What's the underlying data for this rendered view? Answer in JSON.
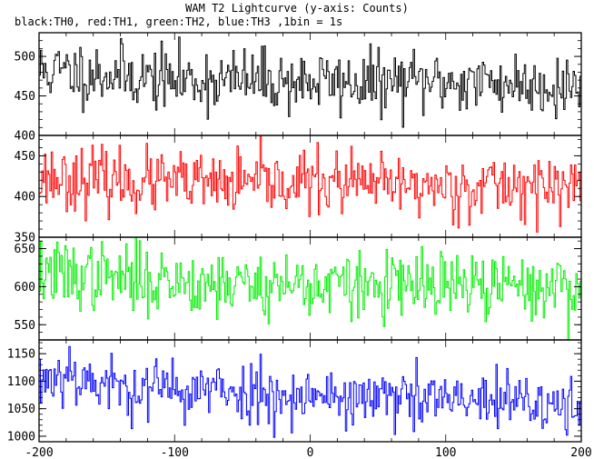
{
  "title": "WAM T2 Lightcurve (y-axis: Counts)",
  "subtitle": "black:TH0, red:TH1, green:TH2, blue:TH3 ,1bin = 1s",
  "chart_data": {
    "type": "line",
    "style": "histogram-step",
    "x_range": [
      -200,
      200
    ],
    "x_ticks": [
      -200,
      -100,
      0,
      100,
      200
    ],
    "bin_size_s": 1,
    "panels": [
      {
        "name": "TH0",
        "color": "#000000",
        "ylim": [
          400,
          530
        ],
        "yticks": [
          400,
          450,
          500
        ],
        "level": 470,
        "noise_sd": 20,
        "seed": 11,
        "trend": [
          [
            -200,
            482
          ],
          [
            -150,
            478
          ],
          [
            -100,
            470
          ],
          [
            -50,
            470
          ],
          [
            0,
            468
          ],
          [
            50,
            466
          ],
          [
            100,
            468
          ],
          [
            150,
            466
          ],
          [
            200,
            462
          ]
        ]
      },
      {
        "name": "TH1",
        "color": "#ff0000",
        "ylim": [
          350,
          475
        ],
        "yticks": [
          350,
          400,
          450
        ],
        "level": 415,
        "noise_sd": 19,
        "seed": 23,
        "trend": [
          [
            -200,
            425
          ],
          [
            -150,
            420
          ],
          [
            -100,
            416
          ],
          [
            -50,
            414
          ],
          [
            0,
            418
          ],
          [
            50,
            414
          ],
          [
            100,
            412
          ],
          [
            150,
            414
          ],
          [
            200,
            410
          ]
        ]
      },
      {
        "name": "TH2",
        "color": "#00ee00",
        "ylim": [
          530,
          665
        ],
        "yticks": [
          550,
          600,
          650
        ],
        "level": 605,
        "noise_sd": 22,
        "seed": 37,
        "trend": [
          [
            -200,
            618
          ],
          [
            -150,
            612
          ],
          [
            -100,
            608
          ],
          [
            -50,
            604
          ],
          [
            0,
            603
          ],
          [
            50,
            600
          ],
          [
            100,
            600
          ],
          [
            150,
            600
          ],
          [
            200,
            598
          ]
        ]
      },
      {
        "name": "TH3",
        "color": "#0000ff",
        "ylim": [
          990,
          1175
        ],
        "yticks": [
          1000,
          1050,
          1100,
          1150
        ],
        "level": 1070,
        "noise_sd": 28,
        "seed": 53,
        "trend": [
          [
            -200,
            1100
          ],
          [
            -180,
            1120
          ],
          [
            -150,
            1090
          ],
          [
            -100,
            1085
          ],
          [
            -50,
            1080
          ],
          [
            0,
            1075
          ],
          [
            50,
            1068
          ],
          [
            100,
            1065
          ],
          [
            150,
            1060
          ],
          [
            200,
            1050
          ]
        ]
      }
    ]
  }
}
